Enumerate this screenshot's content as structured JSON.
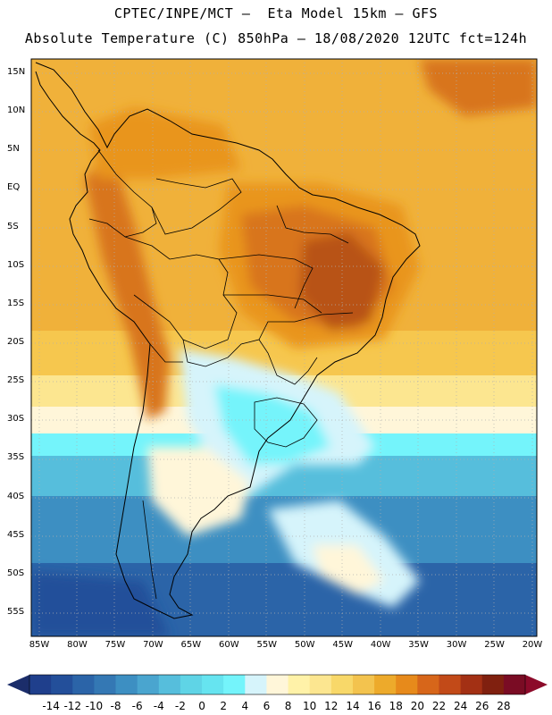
{
  "header": {
    "line1": "CPTEC/INPE/MCT –  Eta Model 15km – GFS",
    "line2": "Absolute Temperature (C) 850hPa – 18/08/2020 12UTC fct=124h"
  },
  "map": {
    "lat_labels": [
      "15N",
      "10N",
      "5N",
      "EQ",
      "5S",
      "10S",
      "15S",
      "20S",
      "25S",
      "30S",
      "35S",
      "40S",
      "45S",
      "50S",
      "55S"
    ],
    "lon_labels": [
      "85W",
      "80W",
      "75W",
      "70W",
      "65W",
      "60W",
      "55W",
      "50W",
      "45W",
      "40W",
      "35W",
      "30W",
      "25W",
      "20W"
    ],
    "lat_values": [
      15,
      10,
      5,
      0,
      -5,
      -10,
      -15,
      -20,
      -25,
      -30,
      -35,
      -40,
      -45,
      -50,
      -55
    ],
    "lon_values": [
      -85,
      -80,
      -75,
      -70,
      -65,
      -60,
      -55,
      -50,
      -45,
      -40,
      -35,
      -30,
      -25,
      -20
    ]
  },
  "colorbar": {
    "labels": [
      "-14",
      "-12",
      "-10",
      "-8",
      "-6",
      "-4",
      "-2",
      "0",
      "2",
      "4",
      "6",
      "8",
      "10",
      "12",
      "14",
      "16",
      "18",
      "20",
      "22",
      "24",
      "26",
      "28"
    ],
    "colors": [
      "#1f3f8c",
      "#234f9a",
      "#2b64a8",
      "#3478b4",
      "#3d8fc2",
      "#4aa5cf",
      "#56bedc",
      "#5fd4e6",
      "#66e4f0",
      "#74f4fb",
      "#d6f4fb",
      "#fff6d9",
      "#fff2a8",
      "#fce690",
      "#f8d869",
      "#f3c34e",
      "#edaa2b",
      "#e78a1b",
      "#d7661a",
      "#c24a18",
      "#a33014",
      "#80200f",
      "#7a0c24"
    ],
    "under_color": "#1b2d6a",
    "over_color": "#8c0a2a"
  },
  "field_colors": {
    "hot_ocean": "#f0b13a",
    "hot_inland": "#e9951f",
    "very_hot": "#d8741e",
    "deep_hot": "#b85218",
    "warm": "#f6c74e",
    "mild": "#fce690",
    "pale": "#fff6d9",
    "cool_pale": "#d6f4fb",
    "cyan": "#74f4fb",
    "teal": "#56bedc",
    "blue": "#3d8fc2",
    "deep_blue": "#2b64a8"
  }
}
